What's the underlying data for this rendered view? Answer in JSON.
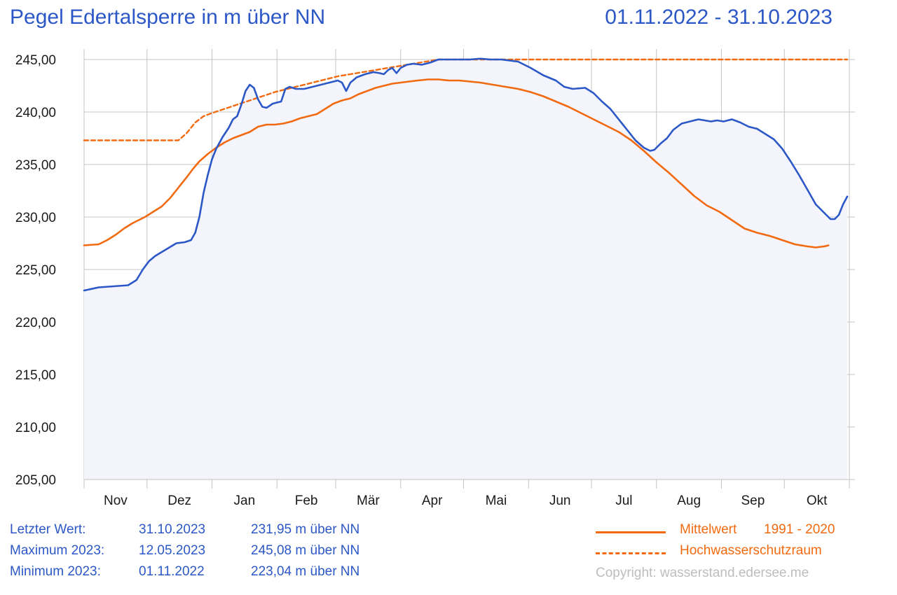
{
  "header": {
    "title": "Pegel Edertalsperre in m über NN",
    "period": "01.11.2022 - 31.10.2023"
  },
  "stats": [
    {
      "label": "Letzter Wert:",
      "date": "31.10.2023",
      "value": "231,95 m über NN"
    },
    {
      "label": "Maximum 2023:",
      "date": "12.05.2023",
      "value": "245,08 m über NN"
    },
    {
      "label": "Minimum 2023:",
      "date": "01.11.2022",
      "value": "223,04 m über NN"
    }
  ],
  "legend": {
    "mean_label": "Mittelwert",
    "mean_range": "1991 - 2020",
    "flood_label": "Hochwasserschutzraum"
  },
  "copyright": "Copyright: wasserstand.edersee.me",
  "colors": {
    "level": "#2c57c6",
    "mean": "#f26a10",
    "flood": "#f26a10",
    "fill": "#f3f4fc",
    "grid": "#c4c4c4"
  },
  "chart_data": {
    "type": "line",
    "ylim": [
      205,
      245
    ],
    "yticks": [
      "205,00",
      "210,00",
      "215,00",
      "220,00",
      "225,00",
      "230,00",
      "235,00",
      "240,00",
      "245,00"
    ],
    "ytick_values": [
      205,
      210,
      215,
      220,
      225,
      230,
      235,
      240,
      245
    ],
    "months": [
      "Nov",
      "Dez",
      "Jan",
      "Feb",
      "Mär",
      "Apr",
      "Mai",
      "Jun",
      "Jul",
      "Aug",
      "Sep",
      "Okt"
    ],
    "month_days": [
      30,
      31,
      31,
      28,
      31,
      30,
      31,
      30,
      31,
      31,
      30,
      31
    ],
    "x_unit": "day of hydrological year (1 = 01.11.2022)",
    "grid": true,
    "series": [
      {
        "key": "level",
        "style": "solid",
        "filled": true,
        "points": [
          [
            1,
            223.0
          ],
          [
            8,
            223.3
          ],
          [
            15,
            223.4
          ],
          [
            22,
            223.5
          ],
          [
            26,
            224.0
          ],
          [
            29,
            225.0
          ],
          [
            32,
            225.8
          ],
          [
            35,
            226.3
          ],
          [
            40,
            226.9
          ],
          [
            45,
            227.5
          ],
          [
            49,
            227.6
          ],
          [
            52,
            227.8
          ],
          [
            54,
            228.5
          ],
          [
            56,
            230.0
          ],
          [
            58,
            232.3
          ],
          [
            60,
            234.0
          ],
          [
            62,
            235.5
          ],
          [
            64,
            236.5
          ],
          [
            67,
            237.6
          ],
          [
            70,
            238.5
          ],
          [
            72,
            239.3
          ],
          [
            74,
            239.6
          ],
          [
            76,
            240.7
          ],
          [
            78,
            242.0
          ],
          [
            80,
            242.6
          ],
          [
            82,
            242.3
          ],
          [
            84,
            241.2
          ],
          [
            86,
            240.5
          ],
          [
            88,
            240.4
          ],
          [
            91,
            240.8
          ],
          [
            95,
            241.0
          ],
          [
            97,
            242.2
          ],
          [
            99,
            242.4
          ],
          [
            102,
            242.2
          ],
          [
            106,
            242.2
          ],
          [
            110,
            242.4
          ],
          [
            114,
            242.6
          ],
          [
            118,
            242.8
          ],
          [
            122,
            243.0
          ],
          [
            124,
            242.8
          ],
          [
            126,
            242.0
          ],
          [
            128,
            242.8
          ],
          [
            131,
            243.3
          ],
          [
            135,
            243.6
          ],
          [
            139,
            243.8
          ],
          [
            142,
            243.7
          ],
          [
            144,
            243.6
          ],
          [
            146,
            244.0
          ],
          [
            148,
            244.2
          ],
          [
            150,
            243.7
          ],
          [
            152,
            244.2
          ],
          [
            155,
            244.5
          ],
          [
            158,
            244.6
          ],
          [
            162,
            244.5
          ],
          [
            166,
            244.7
          ],
          [
            170,
            245.0
          ],
          [
            175,
            245.0
          ],
          [
            180,
            245.0
          ],
          [
            185,
            245.0
          ],
          [
            190,
            245.08
          ],
          [
            195,
            245.0
          ],
          [
            200,
            245.0
          ],
          [
            208,
            244.8
          ],
          [
            214,
            244.2
          ],
          [
            220,
            243.5
          ],
          [
            226,
            243.0
          ],
          [
            230,
            242.4
          ],
          [
            234,
            242.2
          ],
          [
            240,
            242.3
          ],
          [
            244,
            241.8
          ],
          [
            248,
            241.0
          ],
          [
            252,
            240.3
          ],
          [
            256,
            239.3
          ],
          [
            260,
            238.3
          ],
          [
            264,
            237.3
          ],
          [
            268,
            236.6
          ],
          [
            271,
            236.3
          ],
          [
            273,
            236.4
          ],
          [
            276,
            237.0
          ],
          [
            279,
            237.5
          ],
          [
            282,
            238.3
          ],
          [
            286,
            238.9
          ],
          [
            290,
            239.1
          ],
          [
            294,
            239.3
          ],
          [
            297,
            239.2
          ],
          [
            300,
            239.1
          ],
          [
            303,
            239.2
          ],
          [
            306,
            239.1
          ],
          [
            310,
            239.3
          ],
          [
            314,
            239.0
          ],
          [
            318,
            238.6
          ],
          [
            322,
            238.4
          ],
          [
            326,
            237.9
          ],
          [
            330,
            237.4
          ],
          [
            334,
            236.5
          ],
          [
            338,
            235.3
          ],
          [
            342,
            234.0
          ],
          [
            346,
            232.6
          ],
          [
            350,
            231.2
          ],
          [
            354,
            230.4
          ],
          [
            357,
            229.8
          ],
          [
            359,
            229.8
          ],
          [
            361,
            230.2
          ],
          [
            363,
            231.2
          ],
          [
            365,
            231.95
          ]
        ]
      },
      {
        "key": "mean",
        "name": "Mittelwert",
        "style": "solid",
        "points": [
          [
            1,
            227.3
          ],
          [
            8,
            227.4
          ],
          [
            12,
            227.8
          ],
          [
            16,
            228.3
          ],
          [
            20,
            228.9
          ],
          [
            24,
            229.4
          ],
          [
            27,
            229.7
          ],
          [
            30,
            230.0
          ],
          [
            34,
            230.5
          ],
          [
            38,
            231.0
          ],
          [
            42,
            231.8
          ],
          [
            46,
            232.8
          ],
          [
            50,
            233.8
          ],
          [
            53,
            234.6
          ],
          [
            56,
            235.3
          ],
          [
            60,
            236.0
          ],
          [
            64,
            236.6
          ],
          [
            68,
            237.1
          ],
          [
            72,
            237.5
          ],
          [
            76,
            237.8
          ],
          [
            80,
            238.1
          ],
          [
            84,
            238.6
          ],
          [
            88,
            238.8
          ],
          [
            92,
            238.8
          ],
          [
            96,
            238.9
          ],
          [
            100,
            239.1
          ],
          [
            104,
            239.4
          ],
          [
            108,
            239.6
          ],
          [
            112,
            239.8
          ],
          [
            116,
            240.3
          ],
          [
            120,
            240.8
          ],
          [
            124,
            241.1
          ],
          [
            128,
            241.3
          ],
          [
            132,
            241.7
          ],
          [
            136,
            242.0
          ],
          [
            140,
            242.3
          ],
          [
            144,
            242.5
          ],
          [
            148,
            242.7
          ],
          [
            152,
            242.8
          ],
          [
            156,
            242.9
          ],
          [
            160,
            243.0
          ],
          [
            165,
            243.1
          ],
          [
            170,
            243.1
          ],
          [
            175,
            243.0
          ],
          [
            180,
            243.0
          ],
          [
            185,
            242.9
          ],
          [
            190,
            242.8
          ],
          [
            196,
            242.6
          ],
          [
            202,
            242.4
          ],
          [
            208,
            242.2
          ],
          [
            214,
            241.9
          ],
          [
            220,
            241.5
          ],
          [
            226,
            241.0
          ],
          [
            232,
            240.5
          ],
          [
            238,
            239.9
          ],
          [
            244,
            239.3
          ],
          [
            250,
            238.7
          ],
          [
            256,
            238.1
          ],
          [
            262,
            237.3
          ],
          [
            268,
            236.3
          ],
          [
            274,
            235.2
          ],
          [
            280,
            234.2
          ],
          [
            286,
            233.1
          ],
          [
            292,
            232.0
          ],
          [
            298,
            231.1
          ],
          [
            304,
            230.5
          ],
          [
            310,
            229.7
          ],
          [
            316,
            228.9
          ],
          [
            322,
            228.5
          ],
          [
            328,
            228.2
          ],
          [
            334,
            227.8
          ],
          [
            340,
            227.4
          ],
          [
            346,
            227.2
          ],
          [
            350,
            227.1
          ],
          [
            354,
            227.2
          ],
          [
            356,
            227.3
          ]
        ]
      },
      {
        "key": "flood",
        "name": "Hochwasserschutzraum",
        "style": "dashed",
        "points": [
          [
            1,
            237.3
          ],
          [
            46,
            237.3
          ],
          [
            50,
            238.0
          ],
          [
            54,
            239.0
          ],
          [
            58,
            239.6
          ],
          [
            62,
            239.9
          ],
          [
            68,
            240.3
          ],
          [
            74,
            240.7
          ],
          [
            80,
            241.1
          ],
          [
            86,
            241.5
          ],
          [
            92,
            241.9
          ],
          [
            98,
            242.2
          ],
          [
            104,
            242.5
          ],
          [
            110,
            242.8
          ],
          [
            116,
            243.1
          ],
          [
            122,
            243.4
          ],
          [
            128,
            243.6
          ],
          [
            134,
            243.8
          ],
          [
            140,
            244.0
          ],
          [
            146,
            244.2
          ],
          [
            152,
            244.4
          ],
          [
            158,
            244.6
          ],
          [
            164,
            244.8
          ],
          [
            170,
            245.0
          ],
          [
            200,
            245.0
          ],
          [
            365,
            245.0
          ]
        ]
      }
    ]
  }
}
